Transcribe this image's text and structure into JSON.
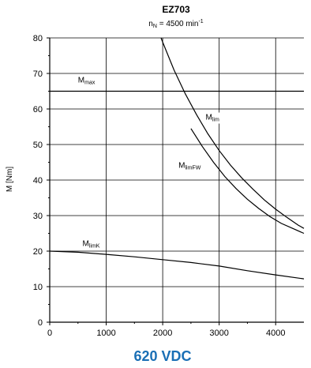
{
  "chart_data": {
    "type": "line",
    "title": "EZ703",
    "subtitle": {
      "base": "n",
      "sub": "N",
      "value": " = 4500 min",
      "sup": "-1"
    },
    "ylabel": "M [Nm]",
    "xlabel": "",
    "xlim": [
      0,
      4500
    ],
    "ylim": [
      0,
      80
    ],
    "x_ticks": [
      0,
      1000,
      2000,
      3000,
      4000
    ],
    "y_ticks": [
      0,
      10,
      20,
      30,
      40,
      50,
      60,
      70,
      80
    ],
    "grid": true,
    "series": [
      {
        "name": "Mmax",
        "label_base": "M",
        "label_sub": "max",
        "label_at": [
          500,
          67.5
        ],
        "x": [
          0,
          4500
        ],
        "y": [
          65,
          65
        ]
      },
      {
        "name": "Mlim",
        "label_base": "M",
        "label_sub": "lim",
        "label_at": [
          2760,
          57
        ],
        "x": [
          1970,
          2000,
          2200,
          2400,
          2600,
          2800,
          3000,
          3200,
          3400,
          3600,
          3800,
          4000,
          4200,
          4400,
          4500
        ],
        "y": [
          80,
          78.8,
          71,
          64.3,
          58.4,
          53,
          48.3,
          44.2,
          40.6,
          37.4,
          34.4,
          31.8,
          29.5,
          27.3,
          26.4
        ]
      },
      {
        "name": "MlimFW",
        "label_base": "M",
        "label_sub": "limFW",
        "label_at": [
          2280,
          43.5
        ],
        "x": [
          2500,
          2700,
          2900,
          3100,
          3300,
          3500,
          3700,
          3900,
          4100,
          4300,
          4500
        ],
        "y": [
          54.5,
          49.5,
          45,
          41,
          37.6,
          34.6,
          32,
          29.7,
          27.8,
          26.4,
          25
        ]
      },
      {
        "name": "MlimK",
        "label_base": "M",
        "label_sub": "limK",
        "label_at": [
          580,
          21.5
        ],
        "x": [
          0,
          500,
          1000,
          1500,
          2000,
          2500,
          3000,
          3500,
          4000,
          4500
        ],
        "y": [
          20,
          19.7,
          19.1,
          18.4,
          17.6,
          16.8,
          15.8,
          14.5,
          13.3,
          12.2
        ]
      }
    ]
  },
  "footer": {
    "text": "620 VDC",
    "color": "#1a6fb5"
  },
  "colors": {
    "lines": "#000000",
    "grid": "#000000"
  }
}
